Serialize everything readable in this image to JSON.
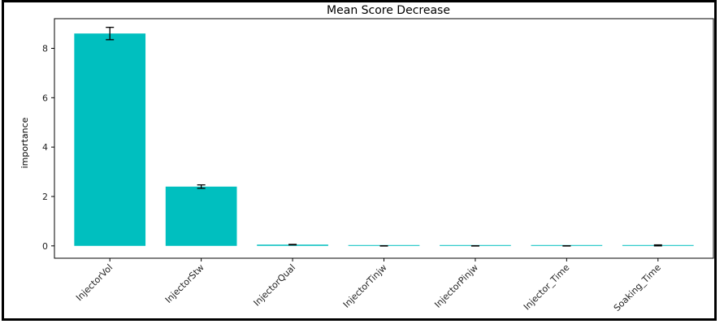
{
  "chart_data": {
    "type": "bar",
    "title": "Mean Score Decrease",
    "xlabel": "",
    "ylabel": "importance",
    "categories": [
      "InjectorVol",
      "InjectorStw",
      "InjectorQual",
      "InjectorTinjw",
      "InjectorPinjw",
      "Injector_Time",
      "Soaking_Time"
    ],
    "values": [
      8.6,
      2.4,
      0.05,
      0.0,
      0.0,
      0.0,
      0.02
    ],
    "errors": [
      0.25,
      0.07,
      0.01,
      0.005,
      0.005,
      0.005,
      0.02
    ],
    "yticks": [
      0,
      2,
      4,
      6,
      8
    ],
    "ylim": [
      -0.5,
      9.2
    ],
    "grid": false,
    "colors": {
      "bar": "#00bfbf",
      "error": "#000000"
    }
  }
}
